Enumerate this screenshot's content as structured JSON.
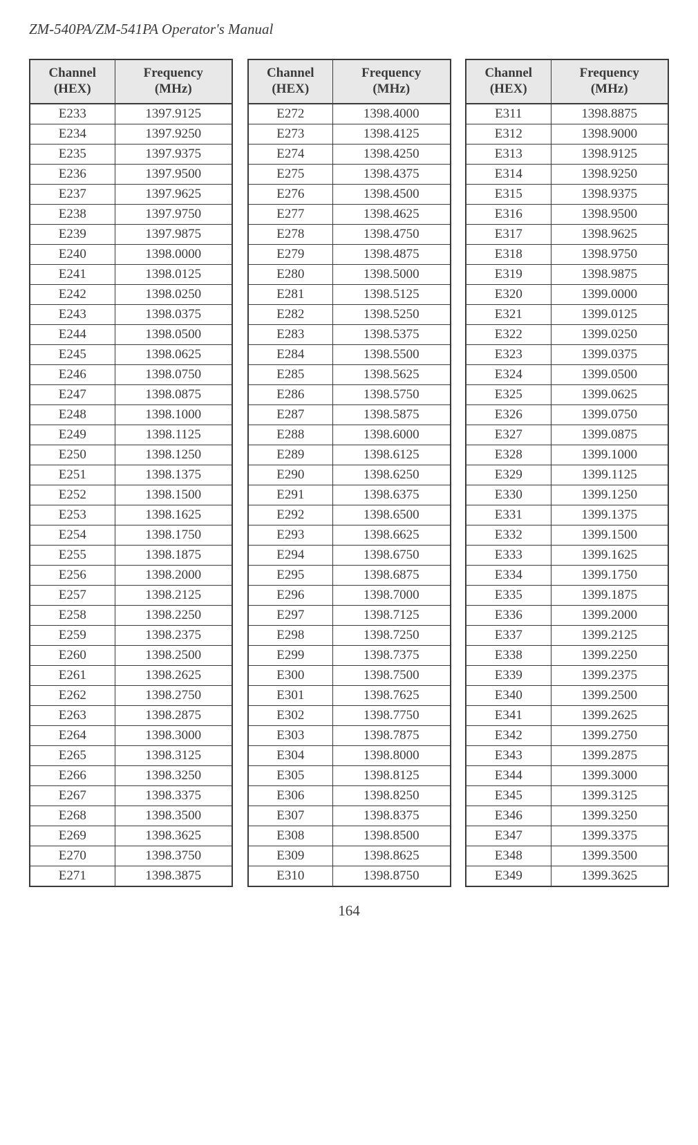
{
  "header": {
    "title": "ZM-540PA/ZM-541PA  Operator's Manual"
  },
  "page_number": "164",
  "table_headers": {
    "col1_line1": "Channel",
    "col1_line2": "(HEX)",
    "col2_line1": "Frequency",
    "col2_line2": "(MHz)"
  },
  "tables": [
    {
      "rows": [
        {
          "ch": "E233",
          "freq": "1397.9125"
        },
        {
          "ch": "E234",
          "freq": "1397.9250"
        },
        {
          "ch": "E235",
          "freq": "1397.9375"
        },
        {
          "ch": "E236",
          "freq": "1397.9500"
        },
        {
          "ch": "E237",
          "freq": "1397.9625"
        },
        {
          "ch": "E238",
          "freq": "1397.9750"
        },
        {
          "ch": "E239",
          "freq": "1397.9875"
        },
        {
          "ch": "E240",
          "freq": "1398.0000"
        },
        {
          "ch": "E241",
          "freq": "1398.0125"
        },
        {
          "ch": "E242",
          "freq": "1398.0250"
        },
        {
          "ch": "E243",
          "freq": "1398.0375"
        },
        {
          "ch": "E244",
          "freq": "1398.0500"
        },
        {
          "ch": "E245",
          "freq": "1398.0625"
        },
        {
          "ch": "E246",
          "freq": "1398.0750"
        },
        {
          "ch": "E247",
          "freq": "1398.0875"
        },
        {
          "ch": "E248",
          "freq": "1398.1000"
        },
        {
          "ch": "E249",
          "freq": "1398.1125"
        },
        {
          "ch": "E250",
          "freq": "1398.1250"
        },
        {
          "ch": "E251",
          "freq": "1398.1375"
        },
        {
          "ch": "E252",
          "freq": "1398.1500"
        },
        {
          "ch": "E253",
          "freq": "1398.1625"
        },
        {
          "ch": "E254",
          "freq": "1398.1750"
        },
        {
          "ch": "E255",
          "freq": "1398.1875"
        },
        {
          "ch": "E256",
          "freq": "1398.2000"
        },
        {
          "ch": "E257",
          "freq": "1398.2125"
        },
        {
          "ch": "E258",
          "freq": "1398.2250"
        },
        {
          "ch": "E259",
          "freq": "1398.2375"
        },
        {
          "ch": "E260",
          "freq": "1398.2500"
        },
        {
          "ch": "E261",
          "freq": "1398.2625"
        },
        {
          "ch": "E262",
          "freq": "1398.2750"
        },
        {
          "ch": "E263",
          "freq": "1398.2875"
        },
        {
          "ch": "E264",
          "freq": "1398.3000"
        },
        {
          "ch": "E265",
          "freq": "1398.3125"
        },
        {
          "ch": "E266",
          "freq": "1398.3250"
        },
        {
          "ch": "E267",
          "freq": "1398.3375"
        },
        {
          "ch": "E268",
          "freq": "1398.3500"
        },
        {
          "ch": "E269",
          "freq": "1398.3625"
        },
        {
          "ch": "E270",
          "freq": "1398.3750"
        },
        {
          "ch": "E271",
          "freq": "1398.3875"
        }
      ]
    },
    {
      "rows": [
        {
          "ch": "E272",
          "freq": "1398.4000"
        },
        {
          "ch": "E273",
          "freq": "1398.4125"
        },
        {
          "ch": "E274",
          "freq": "1398.4250"
        },
        {
          "ch": "E275",
          "freq": "1398.4375"
        },
        {
          "ch": "E276",
          "freq": "1398.4500"
        },
        {
          "ch": "E277",
          "freq": "1398.4625"
        },
        {
          "ch": "E278",
          "freq": "1398.4750"
        },
        {
          "ch": "E279",
          "freq": "1398.4875"
        },
        {
          "ch": "E280",
          "freq": "1398.5000"
        },
        {
          "ch": "E281",
          "freq": "1398.5125"
        },
        {
          "ch": "E282",
          "freq": "1398.5250"
        },
        {
          "ch": "E283",
          "freq": "1398.5375"
        },
        {
          "ch": "E284",
          "freq": "1398.5500"
        },
        {
          "ch": "E285",
          "freq": "1398.5625"
        },
        {
          "ch": "E286",
          "freq": "1398.5750"
        },
        {
          "ch": "E287",
          "freq": "1398.5875"
        },
        {
          "ch": "E288",
          "freq": "1398.6000"
        },
        {
          "ch": "E289",
          "freq": "1398.6125"
        },
        {
          "ch": "E290",
          "freq": "1398.6250"
        },
        {
          "ch": "E291",
          "freq": "1398.6375"
        },
        {
          "ch": "E292",
          "freq": "1398.6500"
        },
        {
          "ch": "E293",
          "freq": "1398.6625"
        },
        {
          "ch": "E294",
          "freq": "1398.6750"
        },
        {
          "ch": "E295",
          "freq": "1398.6875"
        },
        {
          "ch": "E296",
          "freq": "1398.7000"
        },
        {
          "ch": "E297",
          "freq": "1398.7125"
        },
        {
          "ch": "E298",
          "freq": "1398.7250"
        },
        {
          "ch": "E299",
          "freq": "1398.7375"
        },
        {
          "ch": "E300",
          "freq": "1398.7500"
        },
        {
          "ch": "E301",
          "freq": "1398.7625"
        },
        {
          "ch": "E302",
          "freq": "1398.7750"
        },
        {
          "ch": "E303",
          "freq": "1398.7875"
        },
        {
          "ch": "E304",
          "freq": "1398.8000"
        },
        {
          "ch": "E305",
          "freq": "1398.8125"
        },
        {
          "ch": "E306",
          "freq": "1398.8250"
        },
        {
          "ch": "E307",
          "freq": "1398.8375"
        },
        {
          "ch": "E308",
          "freq": "1398.8500"
        },
        {
          "ch": "E309",
          "freq": "1398.8625"
        },
        {
          "ch": "E310",
          "freq": "1398.8750"
        }
      ]
    },
    {
      "rows": [
        {
          "ch": "E311",
          "freq": "1398.8875"
        },
        {
          "ch": "E312",
          "freq": "1398.9000"
        },
        {
          "ch": "E313",
          "freq": "1398.9125"
        },
        {
          "ch": "E314",
          "freq": "1398.9250"
        },
        {
          "ch": "E315",
          "freq": "1398.9375"
        },
        {
          "ch": "E316",
          "freq": "1398.9500"
        },
        {
          "ch": "E317",
          "freq": "1398.9625"
        },
        {
          "ch": "E318",
          "freq": "1398.9750"
        },
        {
          "ch": "E319",
          "freq": "1398.9875"
        },
        {
          "ch": "E320",
          "freq": "1399.0000"
        },
        {
          "ch": "E321",
          "freq": "1399.0125"
        },
        {
          "ch": "E322",
          "freq": "1399.0250"
        },
        {
          "ch": "E323",
          "freq": "1399.0375"
        },
        {
          "ch": "E324",
          "freq": "1399.0500"
        },
        {
          "ch": "E325",
          "freq": "1399.0625"
        },
        {
          "ch": "E326",
          "freq": "1399.0750"
        },
        {
          "ch": "E327",
          "freq": "1399.0875"
        },
        {
          "ch": "E328",
          "freq": "1399.1000"
        },
        {
          "ch": "E329",
          "freq": "1399.1125"
        },
        {
          "ch": "E330",
          "freq": "1399.1250"
        },
        {
          "ch": "E331",
          "freq": "1399.1375"
        },
        {
          "ch": "E332",
          "freq": "1399.1500"
        },
        {
          "ch": "E333",
          "freq": "1399.1625"
        },
        {
          "ch": "E334",
          "freq": "1399.1750"
        },
        {
          "ch": "E335",
          "freq": "1399.1875"
        },
        {
          "ch": "E336",
          "freq": "1399.2000"
        },
        {
          "ch": "E337",
          "freq": "1399.2125"
        },
        {
          "ch": "E338",
          "freq": "1399.2250"
        },
        {
          "ch": "E339",
          "freq": "1399.2375"
        },
        {
          "ch": "E340",
          "freq": "1399.2500"
        },
        {
          "ch": "E341",
          "freq": "1399.2625"
        },
        {
          "ch": "E342",
          "freq": "1399.2750"
        },
        {
          "ch": "E343",
          "freq": "1399.2875"
        },
        {
          "ch": "E344",
          "freq": "1399.3000"
        },
        {
          "ch": "E345",
          "freq": "1399.3125"
        },
        {
          "ch": "E346",
          "freq": "1399.3250"
        },
        {
          "ch": "E347",
          "freq": "1399.3375"
        },
        {
          "ch": "E348",
          "freq": "1399.3500"
        },
        {
          "ch": "E349",
          "freq": "1399.3625"
        }
      ]
    }
  ]
}
